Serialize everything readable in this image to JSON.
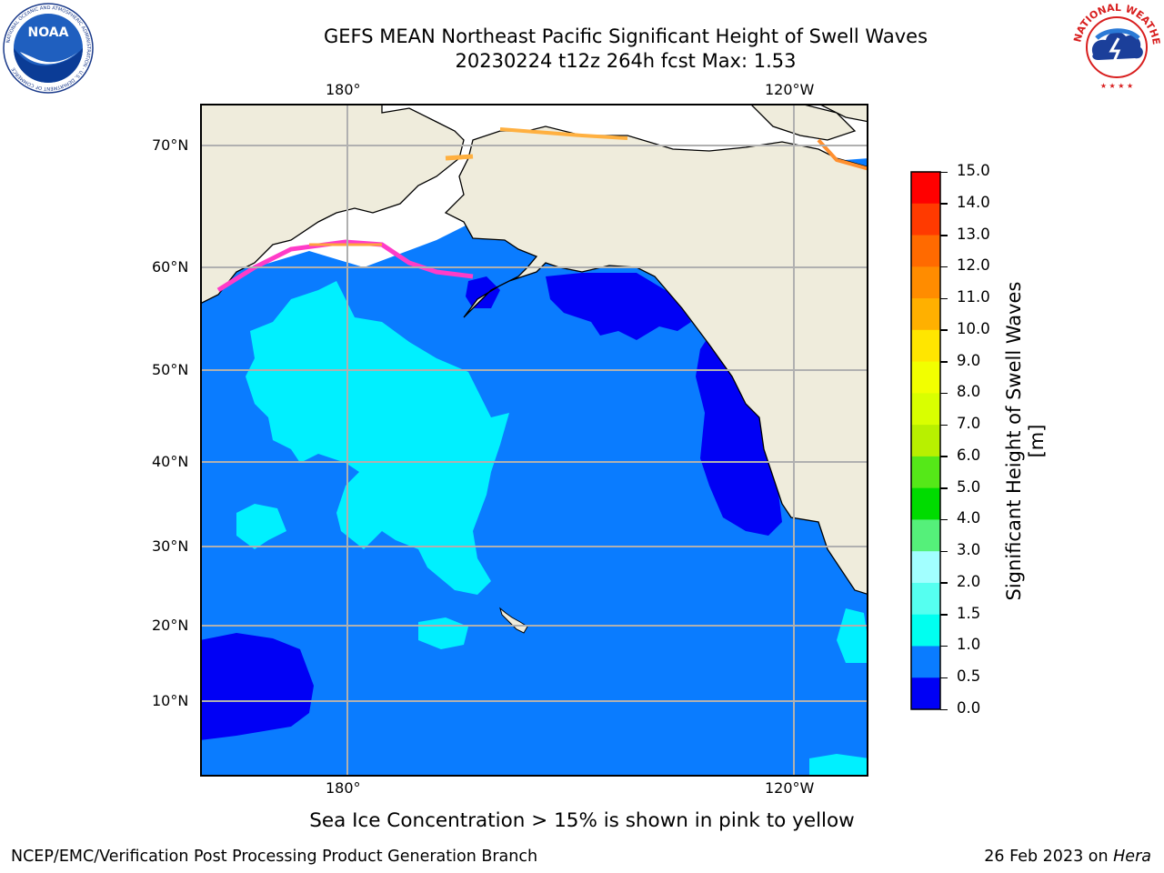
{
  "header": {
    "title_line1": "GEFS MEAN Northeast Pacific Significant Height of Swell Waves",
    "title_line2": "20230224 t12z 264h fcst   Max: 1.53"
  },
  "logos": {
    "noaa": {
      "text": "NOAA",
      "ring_text": "NATIONAL OCEANIC AND ATMOSPHERIC ADMINISTRATION · U.S. DEPARTMENT OF COMMERCE"
    },
    "nws": {
      "ring_text": "NATIONAL WEATHER SERVICE"
    }
  },
  "map": {
    "top_lon_labels": [
      "180°",
      "120°W"
    ],
    "bottom_lon_labels": [
      "180°",
      "120°W"
    ],
    "lat_labels": [
      "70°N",
      "60°N",
      "50°N",
      "40°N",
      "30°N",
      "20°N",
      "10°N"
    ],
    "colors": {
      "land": "#efecdc",
      "ocean_base": "#0a7cff",
      "cyan": "#00f0ff",
      "deep_blue": "#0000f5",
      "grid": "#b0b0b0"
    }
  },
  "colorbar": {
    "label": "Significant Height of Swell Waves [m]",
    "ticks": [
      "15.0",
      "14.0",
      "13.0",
      "12.0",
      "11.0",
      "10.0",
      "9.0",
      "8.0",
      "7.0",
      "6.0",
      "5.0",
      "4.0",
      "3.0",
      "2.0",
      "1.5",
      "1.0",
      "0.5",
      "0.0"
    ],
    "colors": [
      "#ff0000",
      "#ff3a00",
      "#ff6a00",
      "#ff8c00",
      "#ffb000",
      "#ffe600",
      "#f2ff00",
      "#d9ff00",
      "#b8f000",
      "#55e818",
      "#00dc00",
      "#55f07a",
      "#a2ffff",
      "#55fff0",
      "#00fff0",
      "#0a7cff",
      "#0000f5"
    ]
  },
  "note": "Sea Ice Concentration > 15% is shown in pink to yellow",
  "footer": {
    "left": "NCEP/EMC/Verification Post Processing Product Generation Branch",
    "right_prefix": "26 Feb 2023 on ",
    "right_host": "Hera"
  }
}
